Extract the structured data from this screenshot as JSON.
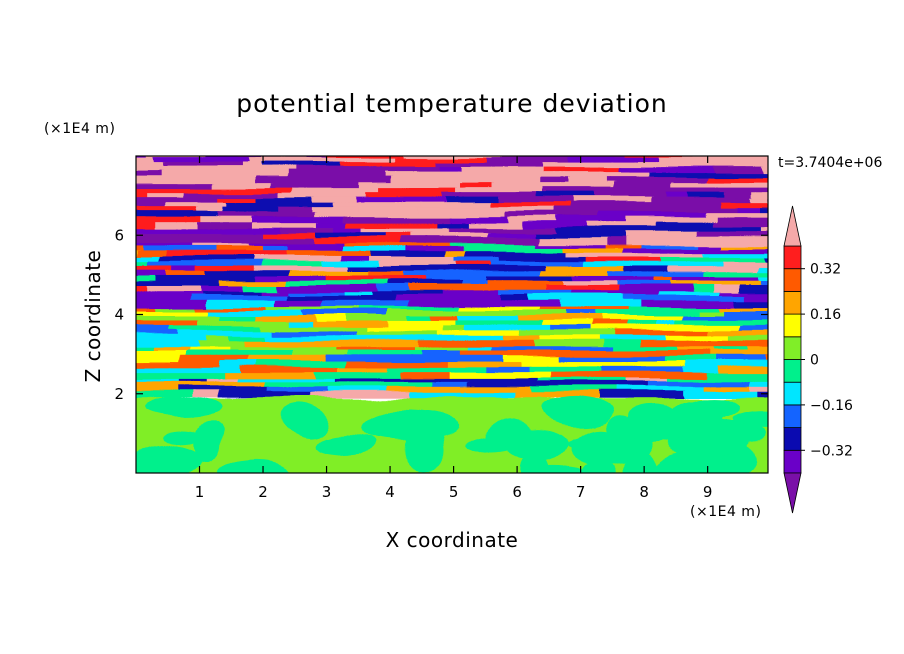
{
  "chart_data": {
    "type": "contour",
    "title": "potential temperature deviation",
    "xlabel": "X coordinate",
    "ylabel": "Z coordinate",
    "x_unit": "(×1E4 m)",
    "y_unit": "(×1E4 m)",
    "time_label": "t=3.7404e+06",
    "xlim": [
      0,
      9.95
    ],
    "ylim": [
      0,
      8
    ],
    "x_ticks": [
      "1",
      "2",
      "3",
      "4",
      "5",
      "6",
      "7",
      "8",
      "9"
    ],
    "y_ticks": [
      "2",
      "4",
      "6"
    ],
    "colorbar": {
      "levels": [
        -0.48,
        -0.4,
        -0.32,
        -0.24,
        -0.16,
        -0.08,
        0,
        0.08,
        0.16,
        0.24,
        0.32,
        0.4,
        0.48
      ],
      "tick_labels": [
        "0.32",
        "0.16",
        "0",
        "−0.16",
        "−0.32"
      ],
      "tick_values": [
        0.32,
        0.16,
        0,
        -0.16,
        -0.32
      ],
      "colors": [
        "#7a0fa8",
        "#6a00c8",
        "#0a0ab0",
        "#1464ff",
        "#00e6ff",
        "#00f08c",
        "#80ee28",
        "#ffff00",
        "#ffa500",
        "#ff5a00",
        "#ff1e1e",
        "#f5a9a9"
      ],
      "extend": "both"
    },
    "layers": [
      {
        "z": [
          0,
          1.9
        ],
        "value": 0.04,
        "note": "convective layer, mostly 0 to 0.08 with patches below 0"
      },
      {
        "z": [
          1.9,
          2.4
        ],
        "value": -0.2,
        "note": "thin inversion, mixed"
      },
      {
        "z": [
          2.4,
          4.2
        ],
        "value": 0.0,
        "note": "banded -0.12 to 0.28"
      },
      {
        "z": [
          4.2,
          4.6
        ],
        "value": -0.4,
        "note": "negative band"
      },
      {
        "z": [
          4.6,
          5.8
        ],
        "value": 0.3,
        "note": "mixed strong positive and negative"
      },
      {
        "z": [
          5.8,
          8.0
        ],
        "value": 0.0,
        "note": "alternating +0.48 / -0.48 bands"
      }
    ]
  }
}
